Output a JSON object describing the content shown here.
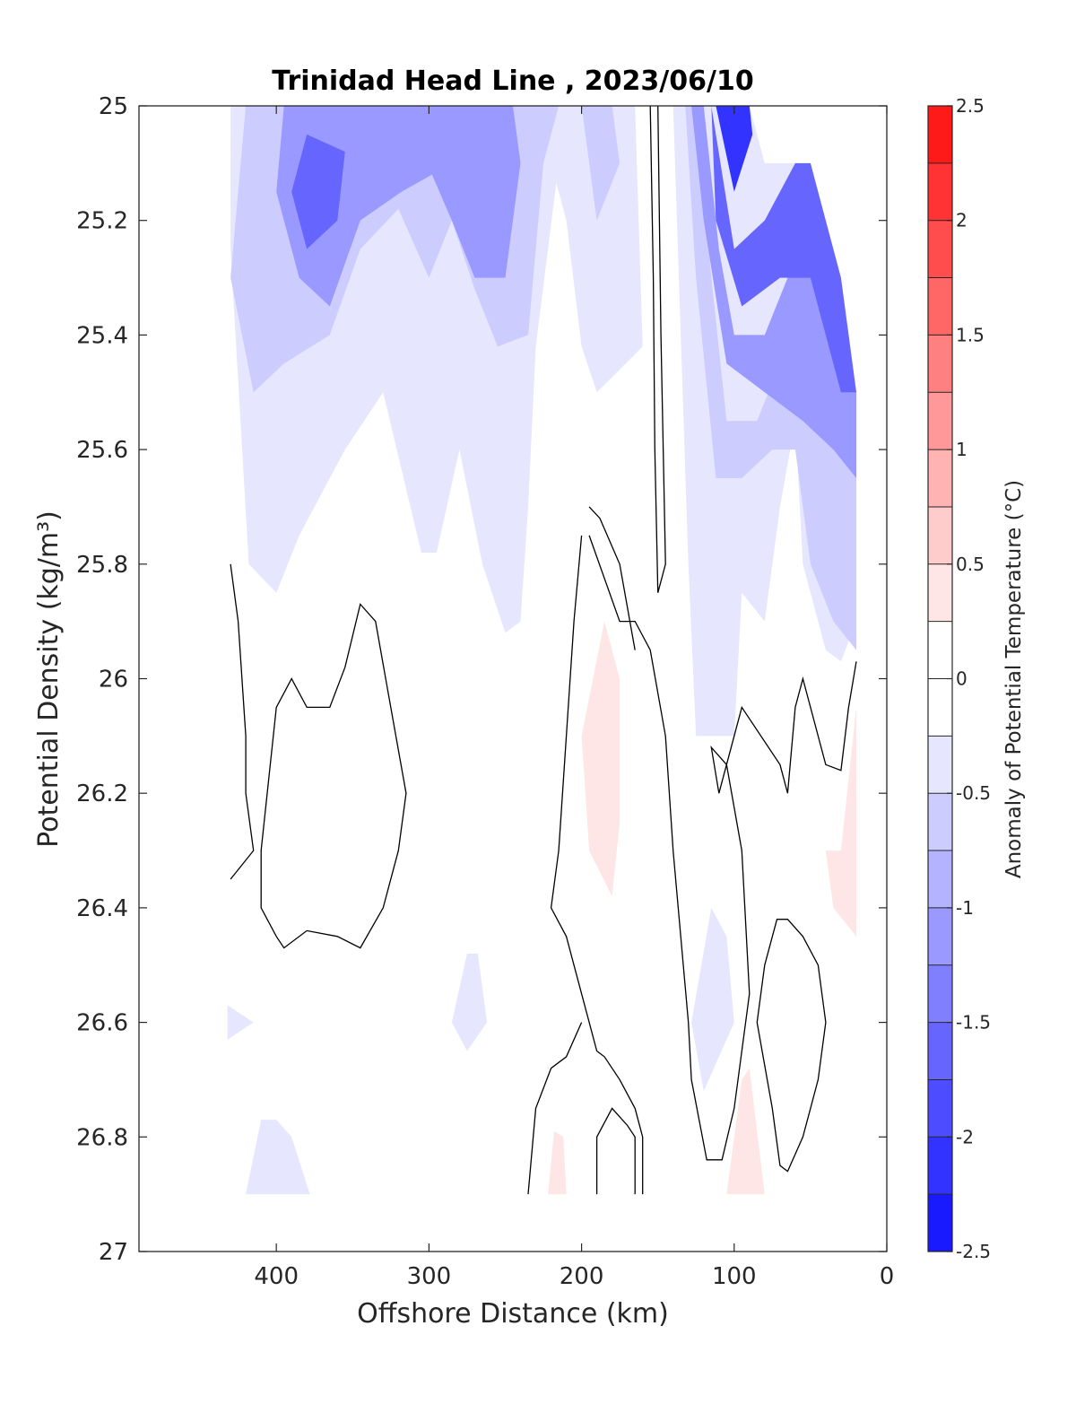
{
  "chart_data": {
    "type": "contour",
    "title": "Trinidad Head Line , 2023/06/10",
    "xlabel": "Offshore Distance (km)",
    "ylabel": "Potential Density (kg/m³)",
    "colorbar_label": "Anomaly of Potential Temperature (°C)",
    "xlim": [
      490,
      0
    ],
    "ylim": [
      25,
      27
    ],
    "x_reversed": true,
    "y_reversed": true,
    "x_ticks": [
      400,
      300,
      200,
      100,
      0
    ],
    "x_tick_labels": [
      "400",
      "300",
      "200",
      "100",
      "0"
    ],
    "y_ticks": [
      25,
      25.2,
      25.4,
      25.6,
      25.8,
      26,
      26.2,
      26.4,
      26.6,
      26.8,
      27
    ],
    "y_tick_labels": [
      "25",
      "25.2",
      "25.4",
      "25.6",
      "25.8",
      "26",
      "26.2",
      "26.4",
      "26.6",
      "26.8",
      "27"
    ],
    "colorbar": {
      "range": [
        -2.5,
        2.5
      ],
      "step": 0.25,
      "ticks": [
        -2.5,
        -2,
        -1.5,
        -1,
        -0.5,
        0,
        0.5,
        1,
        1.5,
        2,
        2.5
      ],
      "tick_labels": [
        "-2.5",
        "-2",
        "-1.5",
        "-1",
        "-0.5",
        "0",
        "0.5",
        "1",
        "1.5",
        "2",
        "2.5"
      ],
      "negative_color": "#0000ff",
      "positive_color": "#ff0000",
      "neutral_color": "#ffffff"
    },
    "zero_contour_color": "#000000",
    "regions": [
      {
        "level": -0.25,
        "points": [
          [
            430,
            25
          ],
          [
            310,
            25
          ],
          [
            300,
            25.06
          ],
          [
            260,
            25.03
          ],
          [
            230,
            25
          ],
          [
            210,
            25.2
          ],
          [
            200,
            25.42
          ],
          [
            190,
            25.5
          ],
          [
            160,
            25.42
          ],
          [
            165,
            25
          ],
          [
            140,
            25
          ],
          [
            130,
            25.8
          ],
          [
            125,
            26.1
          ],
          [
            100,
            26.1
          ],
          [
            95,
            25.85
          ],
          [
            80,
            25.9
          ],
          [
            70,
            25.7
          ],
          [
            60,
            25.55
          ],
          [
            55,
            25.8
          ],
          [
            40,
            25.95
          ],
          [
            30,
            25.97
          ],
          [
            20,
            25.9
          ],
          [
            20,
            25.5
          ],
          [
            30,
            25.3
          ],
          [
            50,
            25.1
          ],
          [
            80,
            25.1
          ],
          [
            90,
            25
          ],
          [
            140,
            25
          ],
          [
            165,
            25
          ],
          [
            430,
            25
          ],
          [
            430,
            25.25
          ],
          [
            418,
            25.8
          ],
          [
            400,
            25.85
          ],
          [
            385,
            25.75
          ],
          [
            355,
            25.6
          ],
          [
            330,
            25.5
          ],
          [
            305,
            25.78
          ],
          [
            295,
            25.78
          ],
          [
            280,
            25.6
          ],
          [
            265,
            25.8
          ],
          [
            250,
            25.92
          ],
          [
            240,
            25.9
          ],
          [
            235,
            25.7
          ],
          [
            230,
            25.42
          ],
          [
            215,
            25.1
          ],
          [
            210,
            25.04
          ]
        ]
      },
      {
        "level": -0.25,
        "points": [
          [
            428,
            25
          ],
          [
            428,
            25.2
          ],
          [
            420,
            25.55
          ],
          [
            405,
            25.58
          ],
          [
            385,
            25.5
          ],
          [
            360,
            25.4
          ],
          [
            335,
            25.25
          ],
          [
            320,
            25.32
          ],
          [
            302,
            25.5
          ],
          [
            290,
            25.48
          ],
          [
            270,
            25.38
          ],
          [
            255,
            25.5
          ],
          [
            240,
            25.58
          ],
          [
            235,
            25.45
          ],
          [
            225,
            25.3
          ],
          [
            220,
            25.05
          ],
          [
            210,
            25
          ]
        ]
      },
      {
        "level": -0.25,
        "points": [
          [
            432,
            26.57
          ],
          [
            415,
            26.6
          ],
          [
            432,
            26.63
          ]
        ]
      },
      {
        "level": -0.25,
        "points": [
          [
            275,
            26.48
          ],
          [
            285,
            26.6
          ],
          [
            275,
            26.65
          ],
          [
            262,
            26.6
          ],
          [
            268,
            26.48
          ]
        ]
      },
      {
        "level": -0.25,
        "points": [
          [
            400,
            26.77
          ],
          [
            390,
            26.8
          ],
          [
            378,
            26.9
          ],
          [
            420,
            26.9
          ],
          [
            410,
            26.77
          ]
        ]
      },
      {
        "level": -0.25,
        "points": [
          [
            115,
            26.4
          ],
          [
            128,
            26.6
          ],
          [
            120,
            26.72
          ],
          [
            100,
            26.6
          ],
          [
            105,
            26.45
          ]
        ]
      },
      {
        "level": -0.5,
        "points": [
          [
            420,
            25
          ],
          [
            430,
            25.3
          ],
          [
            415,
            25.5
          ],
          [
            395,
            25.45
          ],
          [
            365,
            25.4
          ],
          [
            345,
            25.25
          ],
          [
            320,
            25.18
          ],
          [
            300,
            25.3
          ],
          [
            285,
            25.2
          ],
          [
            270,
            25.32
          ],
          [
            255,
            25.42
          ],
          [
            235,
            25.4
          ],
          [
            225,
            25.1
          ],
          [
            215,
            25
          ],
          [
            200,
            25
          ],
          [
            190,
            25.2
          ],
          [
            175,
            25.1
          ],
          [
            180,
            25
          ]
        ]
      },
      {
        "level": -0.5,
        "points": [
          [
            125,
            25
          ],
          [
            115,
            25.3
          ],
          [
            105,
            25.55
          ],
          [
            85,
            25.55
          ],
          [
            70,
            25.45
          ],
          [
            55,
            25.35
          ],
          [
            45,
            25.45
          ],
          [
            30,
            25.55
          ],
          [
            20,
            25.65
          ],
          [
            20,
            25.95
          ],
          [
            35,
            25.9
          ],
          [
            50,
            25.8
          ],
          [
            60,
            25.6
          ],
          [
            75,
            25.6
          ],
          [
            95,
            25.65
          ],
          [
            112,
            25.65
          ],
          [
            125,
            25.3
          ],
          [
            132,
            25
          ]
        ]
      },
      {
        "level": -1,
        "points": [
          [
            395,
            25
          ],
          [
            400,
            25.15
          ],
          [
            385,
            25.3
          ],
          [
            365,
            25.35
          ],
          [
            345,
            25.2
          ],
          [
            318,
            25.15
          ],
          [
            298,
            25.12
          ],
          [
            285,
            25.2
          ],
          [
            270,
            25.3
          ],
          [
            250,
            25.3
          ],
          [
            240,
            25.1
          ],
          [
            245,
            25
          ]
        ]
      },
      {
        "level": -1,
        "points": [
          [
            120,
            25
          ],
          [
            110,
            25.25
          ],
          [
            100,
            25.4
          ],
          [
            80,
            25.4
          ],
          [
            65,
            25.3
          ],
          [
            45,
            25.25
          ],
          [
            35,
            25.4
          ],
          [
            20,
            25.5
          ],
          [
            20,
            25.65
          ],
          [
            35,
            25.6
          ],
          [
            55,
            25.55
          ],
          [
            80,
            25.5
          ],
          [
            105,
            25.45
          ],
          [
            120,
            25.2
          ],
          [
            128,
            25
          ]
        ]
      },
      {
        "level": -1.5,
        "points": [
          [
            380,
            25.05
          ],
          [
            390,
            25.15
          ],
          [
            380,
            25.25
          ],
          [
            360,
            25.2
          ],
          [
            355,
            25.08
          ]
        ]
      },
      {
        "level": -1.5,
        "points": [
          [
            115,
            25
          ],
          [
            100,
            25.25
          ],
          [
            80,
            25.2
          ],
          [
            60,
            25.1
          ],
          [
            50,
            25.1
          ],
          [
            30,
            25.3
          ],
          [
            20,
            25.5
          ],
          [
            30,
            25.5
          ],
          [
            50,
            25.3
          ],
          [
            70,
            25.3
          ],
          [
            95,
            25.35
          ],
          [
            112,
            25.2
          ]
        ]
      },
      {
        "level": -2,
        "points": [
          [
            112,
            25
          ],
          [
            100,
            25.15
          ],
          [
            88,
            25.05
          ],
          [
            90,
            25
          ]
        ]
      },
      {
        "level": 0.25,
        "points": [
          [
            185,
            25.9
          ],
          [
            200,
            26.1
          ],
          [
            195,
            26.3
          ],
          [
            180,
            26.38
          ],
          [
            175,
            26.25
          ],
          [
            175,
            26
          ]
        ]
      },
      {
        "level": 0.25,
        "points": [
          [
            30,
            26.3
          ],
          [
            20,
            26.05
          ],
          [
            20,
            26.45
          ],
          [
            35,
            26.4
          ],
          [
            40,
            26.3
          ]
        ]
      },
      {
        "level": 0.25,
        "points": [
          [
            90,
            26.68
          ],
          [
            80,
            26.9
          ],
          [
            105,
            26.9
          ],
          [
            95,
            26.7
          ]
        ]
      },
      {
        "level": 0.25,
        "points": [
          [
            218,
            26.79
          ],
          [
            222,
            26.9
          ],
          [
            210,
            26.9
          ],
          [
            212,
            26.8
          ]
        ]
      }
    ],
    "zero_contours": [
      {
        "closed": false,
        "points": [
          [
            430,
            25.8
          ],
          [
            425,
            25.9
          ],
          [
            420,
            26.1
          ],
          [
            420,
            26.2
          ],
          [
            415,
            26.3
          ],
          [
            430,
            26.35
          ]
        ]
      },
      {
        "closed": true,
        "points": [
          [
            345,
            25.87
          ],
          [
            335,
            25.9
          ],
          [
            325,
            26.05
          ],
          [
            315,
            26.2
          ],
          [
            320,
            26.3
          ],
          [
            330,
            26.4
          ],
          [
            345,
            26.47
          ],
          [
            360,
            26.45
          ],
          [
            380,
            26.44
          ],
          [
            395,
            26.47
          ],
          [
            400,
            26.45
          ],
          [
            410,
            26.4
          ],
          [
            410,
            26.3
          ],
          [
            400,
            26.05
          ],
          [
            390,
            26
          ],
          [
            380,
            26.05
          ],
          [
            365,
            26.05
          ],
          [
            355,
            25.98
          ]
        ]
      },
      {
        "closed": false,
        "points": [
          [
            150,
            25
          ],
          [
            148,
            25.4
          ],
          [
            145,
            25.8
          ],
          [
            150,
            25.85
          ],
          [
            152,
            25.6
          ],
          [
            153,
            25.3
          ],
          [
            155,
            25
          ]
        ]
      },
      {
        "closed": false,
        "points": [
          [
            195,
            25.75
          ],
          [
            175,
            25.9
          ],
          [
            165,
            25.9
          ],
          [
            155,
            25.95
          ],
          [
            145,
            26.1
          ],
          [
            140,
            26.3
          ],
          [
            135,
            26.45
          ],
          [
            130,
            26.6
          ],
          [
            128,
            26.7
          ],
          [
            118,
            26.84
          ],
          [
            108,
            26.84
          ],
          [
            100,
            26.75
          ],
          [
            90,
            26.55
          ],
          [
            95,
            26.3
          ],
          [
            105,
            26.15
          ],
          [
            115,
            26.12
          ],
          [
            110,
            26.2
          ],
          [
            95,
            26.05
          ],
          [
            70,
            26.15
          ],
          [
            65,
            26.2
          ],
          [
            60,
            26.05
          ],
          [
            55,
            26
          ],
          [
            40,
            26.15
          ],
          [
            30,
            26.16
          ],
          [
            25,
            26.05
          ],
          [
            20,
            25.97
          ]
        ]
      },
      {
        "closed": false,
        "points": [
          [
            195,
            25.7
          ],
          [
            188,
            25.72
          ],
          [
            175,
            25.8
          ],
          [
            165,
            25.95
          ]
        ]
      },
      {
        "closed": false,
        "points": [
          [
            200,
            25.75
          ],
          [
            205,
            25.9
          ],
          [
            210,
            26.1
          ],
          [
            215,
            26.3
          ],
          [
            220,
            26.4
          ],
          [
            210,
            26.45
          ],
          [
            205,
            26.5
          ],
          [
            195,
            26.6
          ],
          [
            190,
            26.65
          ],
          [
            185,
            26.66
          ],
          [
            175,
            26.7
          ],
          [
            165,
            26.75
          ],
          [
            160,
            26.8
          ],
          [
            160,
            26.9
          ]
        ]
      },
      {
        "closed": false,
        "points": [
          [
            235,
            26.9
          ],
          [
            230,
            26.75
          ],
          [
            220,
            26.68
          ],
          [
            210,
            26.66
          ],
          [
            200,
            26.6
          ]
        ]
      },
      {
        "closed": false,
        "points": [
          [
            190,
            26.9
          ],
          [
            190,
            26.8
          ],
          [
            180,
            26.75
          ],
          [
            170,
            26.78
          ],
          [
            165,
            26.8
          ],
          [
            165,
            26.9
          ]
        ]
      },
      {
        "closed": true,
        "points": [
          [
            72,
            26.42
          ],
          [
            80,
            26.5
          ],
          [
            85,
            26.6
          ],
          [
            75,
            26.75
          ],
          [
            70,
            26.85
          ],
          [
            65,
            26.86
          ],
          [
            55,
            26.8
          ],
          [
            50,
            26.75
          ],
          [
            45,
            26.7
          ],
          [
            40,
            26.6
          ],
          [
            45,
            26.5
          ],
          [
            55,
            26.45
          ],
          [
            65,
            26.42
          ]
        ]
      }
    ]
  }
}
